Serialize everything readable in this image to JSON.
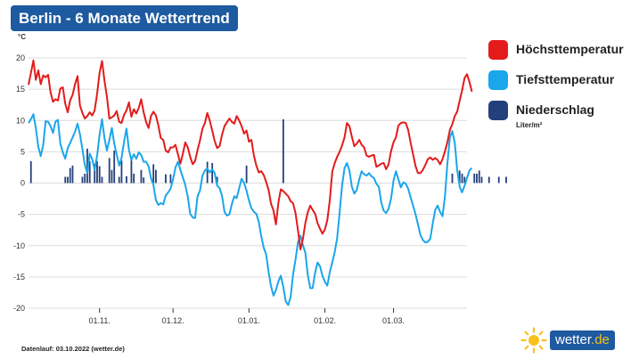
{
  "title": "Berlin - 6 Monate Wettertrend",
  "footer": "Datenlauf: 03.10.2022 (wetter.de)",
  "logo": {
    "text": "wetter",
    "suffix": ".de"
  },
  "legend": {
    "items": [
      {
        "label": "Höchsttemperatur",
        "color": "#e31b1b"
      },
      {
        "label": "Tiefsttemperatur",
        "color": "#1aa6ea"
      },
      {
        "label": "Niederschlag",
        "color": "#24407c"
      }
    ],
    "unit": "Liter/m²"
  },
  "chart_data": {
    "type": "line",
    "y_unit": "°C",
    "ylim": [
      -21,
      21
    ],
    "yticks": [
      20,
      15,
      10,
      5,
      0,
      -5,
      -10,
      -15,
      -20
    ],
    "x_count": 180,
    "x_tick_labels": [
      {
        "label": "01.11.",
        "index": 29
      },
      {
        "label": "01.12.",
        "index": 59
      },
      {
        "label": "01.01.",
        "index": 90
      },
      {
        "label": "01.02.",
        "index": 121
      },
      {
        "label": "01.03.",
        "index": 149
      }
    ],
    "grid": true,
    "series": [
      {
        "name": "Höchsttemperatur",
        "color": "#e31b1b",
        "values": [
          15.7,
          17.6,
          19.6,
          16.5,
          18.0,
          15.8,
          17.2,
          16.9,
          17.3,
          14.5,
          13.0,
          13.4,
          13.2,
          15.1,
          15.3,
          12.7,
          11.3,
          13.2,
          14.1,
          15.8,
          17.1,
          12.4,
          11.2,
          10.3,
          10.7,
          11.3,
          10.8,
          11.6,
          14.3,
          17.6,
          19.5,
          16.4,
          13.8,
          10.3,
          10.5,
          10.8,
          11.5,
          9.8,
          9.6,
          10.9,
          11.6,
          12.9,
          10.6,
          11.8,
          11.1,
          12.0,
          13.4,
          11.3,
          9.8,
          8.8,
          10.7,
          11.4,
          10.8,
          9.2,
          7.2,
          6.9,
          5.2,
          4.9,
          5.7,
          5.7,
          6.1,
          4.6,
          3.1,
          4.7,
          6.5,
          5.7,
          4.2,
          3.0,
          3.5,
          5.3,
          6.8,
          8.7,
          9.6,
          11.2,
          10.0,
          8.4,
          6.7,
          5.6,
          5.9,
          7.7,
          9.1,
          9.7,
          10.3,
          9.8,
          9.5,
          10.7,
          10.0,
          9.1,
          7.9,
          8.4,
          6.6,
          6.9,
          4.4,
          2.8,
          1.7,
          1.9,
          1.3,
          0.2,
          -1.1,
          -3.3,
          -4.4,
          -6.6,
          -3.1,
          -1.0,
          -1.3,
          -1.7,
          -2.1,
          -2.9,
          -3.2,
          -4.8,
          -7.5,
          -10.6,
          -9.0,
          -6.4,
          -4.7,
          -3.6,
          -4.3,
          -4.9,
          -6.4,
          -7.3,
          -8.1,
          -7.4,
          -5.9,
          -2.7,
          1.8,
          3.2,
          4.2,
          5.0,
          6.0,
          7.3,
          9.6,
          9.1,
          7.4,
          5.9,
          6.3,
          6.9,
          6.1,
          5.7,
          4.4,
          4.2,
          4.4,
          4.5,
          2.6,
          2.8,
          3.1,
          3.2,
          2.2,
          3.0,
          5.1,
          6.5,
          7.3,
          9.2,
          9.6,
          9.7,
          9.6,
          8.5,
          6.4,
          4.6,
          2.7,
          1.6,
          1.6,
          2.1,
          2.9,
          3.8,
          4.1,
          3.7,
          4.0,
          3.7,
          3.0,
          3.8,
          5.1,
          6.5,
          8.5,
          9.4,
          10.7,
          11.4,
          13.2,
          14.8,
          16.8,
          17.4,
          16.2,
          14.6
        ]
      },
      {
        "name": "Tiefsttemperatur",
        "color": "#1aa6ea",
        "values": [
          9.6,
          10.2,
          11.0,
          8.8,
          5.8,
          4.3,
          6.1,
          9.9,
          9.8,
          9.1,
          8.0,
          9.8,
          10.1,
          6.3,
          4.9,
          3.9,
          5.6,
          6.4,
          7.3,
          8.2,
          9.5,
          7.8,
          5.4,
          2.9,
          1.6,
          4.7,
          3.8,
          2.1,
          4.4,
          7.7,
          10.2,
          7.2,
          5.2,
          6.9,
          8.8,
          6.3,
          4.6,
          2.8,
          4.0,
          6.6,
          8.7,
          5.3,
          3.7,
          4.6,
          3.9,
          4.9,
          4.5,
          3.4,
          3.4,
          2.7,
          0.8,
          -0.3,
          -2.7,
          -3.5,
          -3.2,
          -3.4,
          -2.0,
          -1.5,
          -0.9,
          0.6,
          2.5,
          3.4,
          2.1,
          0.9,
          -0.3,
          -2.2,
          -4.9,
          -5.5,
          -5.6,
          -2.1,
          -1.2,
          1.2,
          2.0,
          2.3,
          1.7,
          2.2,
          1.6,
          -0.4,
          -0.8,
          -2.0,
          -4.6,
          -5.2,
          -5.0,
          -3.4,
          -2.1,
          -2.4,
          -0.8,
          0.7,
          0.0,
          -1.2,
          -2.8,
          -4.0,
          -4.6,
          -4.9,
          -6.2,
          -8.5,
          -10.3,
          -11.4,
          -14.2,
          -16.5,
          -18.0,
          -17.1,
          -15.7,
          -14.8,
          -16.6,
          -18.9,
          -19.5,
          -18.2,
          -14.7,
          -12.2,
          -9.5,
          -8.4,
          -9.9,
          -11.1,
          -14.6,
          -16.8,
          -16.8,
          -14.3,
          -12.7,
          -13.3,
          -14.8,
          -15.8,
          -16.4,
          -14.2,
          -12.7,
          -11.0,
          -8.8,
          -4.7,
          -0.4,
          2.4,
          3.2,
          2.0,
          -0.6,
          -1.7,
          -1.1,
          0.6,
          1.9,
          1.4,
          1.2,
          1.6,
          1.1,
          0.8,
          -0.1,
          -0.6,
          -3.1,
          -4.4,
          -4.8,
          -4.1,
          -2.5,
          0.4,
          1.9,
          0.6,
          -0.7,
          0.1,
          -0.1,
          -0.9,
          -2.3,
          -3.6,
          -5.0,
          -6.6,
          -8.3,
          -9.1,
          -9.5,
          -9.4,
          -8.9,
          -6.5,
          -4.3,
          -3.6,
          -4.6,
          -5.3,
          -2.1,
          3.1,
          7.3,
          8.3,
          6.4,
          2.1,
          -0.6,
          -1.5,
          -0.4,
          0.8,
          2.0,
          2.4
        ]
      }
    ],
    "bars": {
      "name": "Niederschlag",
      "color": "#24407c",
      "values": [
        0,
        3.5,
        0,
        0,
        0,
        0,
        0,
        0,
        0,
        0,
        0,
        0,
        0,
        0,
        0,
        1.0,
        1.0,
        2.4,
        2.8,
        0,
        0,
        0,
        1.0,
        1.5,
        5.5,
        3.5,
        0,
        3.1,
        3.5,
        2.7,
        1.0,
        0,
        0,
        4.0,
        2.1,
        5.2,
        0,
        1.0,
        3.6,
        0,
        1.1,
        0,
        3.8,
        1.5,
        0,
        0,
        2.1,
        0.9,
        0,
        0,
        0,
        3.0,
        2.1,
        0,
        0,
        0,
        1.4,
        0,
        1.4,
        0,
        0,
        0,
        0,
        0,
        0,
        0,
        0,
        0,
        0,
        0,
        0,
        0,
        0,
        3.4,
        0,
        3.2,
        0,
        1.0,
        0,
        0,
        0,
        0,
        0,
        0,
        0,
        0,
        0,
        0,
        0,
        2.8,
        0,
        0,
        0,
        0,
        0,
        0,
        0,
        0,
        0,
        0,
        0,
        0,
        0,
        0,
        10.2,
        0,
        0,
        0,
        0,
        0,
        0,
        0,
        0,
        0,
        0,
        0,
        0,
        0,
        0,
        0,
        0,
        0,
        0,
        0,
        0,
        0,
        0,
        0,
        0,
        0,
        0,
        0,
        0,
        0,
        0,
        0,
        0,
        0,
        0,
        0,
        0,
        0,
        0,
        0,
        0,
        0,
        0,
        0,
        0,
        0,
        0,
        0,
        0,
        0,
        0,
        0,
        0,
        0,
        0,
        0,
        0,
        0,
        0,
        0,
        0,
        0,
        0,
        0,
        0,
        0,
        0,
        0,
        0,
        1.5,
        0,
        0,
        2.0,
        1.5,
        1.0,
        0,
        0,
        0,
        1.5,
        1.5,
        2.0,
        1.0,
        0,
        0,
        1.0,
        0,
        0,
        0,
        1.0,
        0,
        0,
        1.0,
        0
      ]
    }
  }
}
